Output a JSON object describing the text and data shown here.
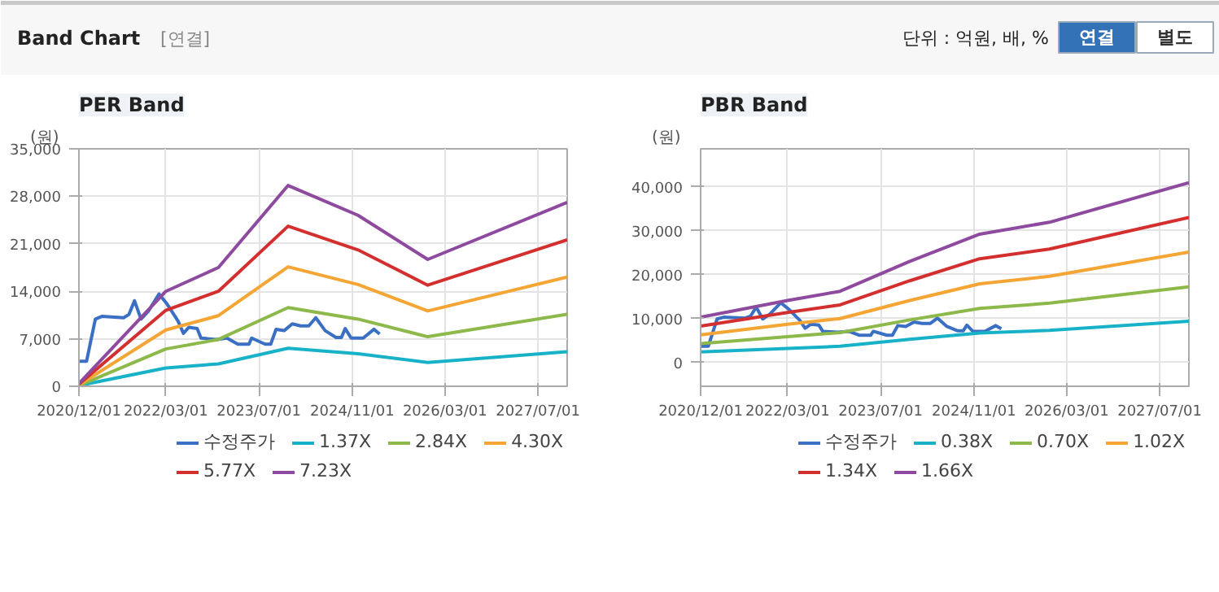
{
  "chart_data": [
    {
      "type": "other",
      "title": "Band Chart",
      "subtitle": "[연결]",
      "annotations": [
        "단위 : 억원, 배, %",
        "연결",
        "별도"
      ]
    },
    {
      "type": "line",
      "title": "PER Band",
      "ylabel": "(원)",
      "grid": true,
      "legend": "bottom",
      "line_style": "solid",
      "xlim": [
        "2020-12-01",
        "2027-12-01"
      ],
      "ylim": [
        0,
        35000
      ],
      "yticks": [
        0,
        {
          "value": 7000,
          "label": "7,000"
        },
        {
          "value": 14000,
          "label": "14,000"
        },
        {
          "value": 21000,
          "label": "21,000"
        },
        {
          "value": 28000,
          "label": "28,000"
        },
        {
          "value": 35000,
          "label": "35,000"
        }
      ],
      "xticks": [
        {
          "value": "2020-12-01",
          "label": "2020/12/01"
        },
        {
          "value": "2022-03-01",
          "label": "2022/03/01"
        },
        {
          "value": "2023-07-01",
          "label": "2023/07/01"
        },
        {
          "value": "2024-11-01",
          "label": "2024/11/01"
        },
        {
          "value": "2026-03-01",
          "label": "2026/03/01"
        },
        {
          "value": "2027-07-01",
          "label": "2027/07/01"
        }
      ],
      "series": [
        {
          "name": "수정주가",
          "color": "#3a6fc4",
          "x": [
            "2020-12-01",
            "2021-01-10",
            "2021-02-25",
            "2021-03-31",
            "2021-07-23",
            "2021-08-20",
            "2021-09-18",
            "2021-10-22",
            "2021-11-28",
            "2022-01-24",
            "2022-03-08",
            "2022-05-04",
            "2022-06-01",
            "2022-06-30",
            "2022-08-12",
            "2022-09-01",
            "2022-11-19",
            "2023-01-15",
            "2023-03-13",
            "2023-05-10",
            "2023-05-24",
            "2023-08-03",
            "2023-09-01",
            "2023-09-29",
            "2023-11-10",
            "2023-12-23",
            "2024-02-04",
            "2024-03-18",
            "2024-04-24",
            "2024-06-12",
            "2024-08-08",
            "2024-09-05",
            "2024-09-25",
            "2024-10-26",
            "2024-12-28",
            "2025-02-23",
            "2025-03-24"
          ],
          "values": [
            3700,
            3700,
            9900,
            10300,
            10100,
            10600,
            12600,
            9900,
            11000,
            13600,
            12100,
            9600,
            7800,
            8700,
            8500,
            7100,
            6900,
            7100,
            6200,
            6200,
            7100,
            6200,
            6200,
            8400,
            8200,
            9200,
            8900,
            8900,
            10100,
            8200,
            7200,
            7200,
            8500,
            7100,
            7100,
            8400,
            7700
          ]
        },
        {
          "name": "1.37X",
          "color": "#17b2c8",
          "x": [
            "2020-12-01",
            "2022-03-01",
            "2022-12-01",
            "2023-12-01",
            "2024-12-01",
            "2025-12-01",
            "2027-12-01"
          ],
          "values": [
            100,
            2700,
            3300,
            5600,
            4800,
            3500,
            5100
          ]
        },
        {
          "name": "2.84X",
          "color": "#8db84a",
          "x": [
            "2020-12-01",
            "2022-03-01",
            "2022-12-01",
            "2023-12-01",
            "2024-12-01",
            "2025-12-01",
            "2027-12-01"
          ],
          "values": [
            100,
            5500,
            6900,
            11600,
            9900,
            7300,
            10600
          ]
        },
        {
          "name": "4.30X",
          "color": "#f4a533",
          "x": [
            "2020-12-01",
            "2022-03-01",
            "2022-12-01",
            "2023-12-01",
            "2024-12-01",
            "2025-12-01",
            "2027-12-01"
          ],
          "values": [
            200,
            8300,
            10400,
            17600,
            15000,
            11100,
            16100
          ]
        },
        {
          "name": "5.77X",
          "color": "#d32f2f",
          "x": [
            "2020-12-01",
            "2022-03-01",
            "2022-12-01",
            "2023-12-01",
            "2024-12-01",
            "2025-12-01",
            "2027-12-01"
          ],
          "values": [
            300,
            11200,
            14000,
            23600,
            20100,
            14900,
            21600
          ]
        },
        {
          "name": "7.23X",
          "color": "#8e4a9e",
          "x": [
            "2020-12-01",
            "2022-03-01",
            "2022-12-01",
            "2023-12-01",
            "2024-12-01",
            "2025-12-01",
            "2027-12-01"
          ],
          "values": [
            400,
            14000,
            17500,
            29600,
            25200,
            18700,
            27100
          ]
        }
      ]
    },
    {
      "type": "line",
      "title": "PBR Band",
      "ylabel": "(원)",
      "grid": true,
      "legend": "bottom",
      "line_style": "solid",
      "xlim": [
        "2020-12-01",
        "2027-12-01"
      ],
      "ylim": [
        -5400,
        48600
      ],
      "yticks": [
        0,
        {
          "value": 10000,
          "label": "10,000"
        },
        {
          "value": 20000,
          "label": "20,000"
        },
        {
          "value": 30000,
          "label": "30,000"
        },
        {
          "value": 40000,
          "label": "40,000"
        }
      ],
      "xticks": [
        {
          "value": "2020-12-01",
          "label": "2020/12/01"
        },
        {
          "value": "2022-03-01",
          "label": "2022/03/01"
        },
        {
          "value": "2023-07-01",
          "label": "2023/07/01"
        },
        {
          "value": "2024-11-01",
          "label": "2024/11/01"
        },
        {
          "value": "2026-03-01",
          "label": "2026/03/01"
        },
        {
          "value": "2027-07-01",
          "label": "2027/07/01"
        }
      ],
      "series": [
        {
          "name": "수정주가",
          "color": "#3a6fc4",
          "x": [
            "2020-12-01",
            "2021-01-10",
            "2021-02-25",
            "2021-03-31",
            "2021-07-23",
            "2021-08-20",
            "2021-09-18",
            "2021-10-22",
            "2021-11-28",
            "2022-01-24",
            "2022-03-08",
            "2022-05-04",
            "2022-06-01",
            "2022-06-30",
            "2022-08-12",
            "2022-09-01",
            "2022-11-19",
            "2023-01-15",
            "2023-03-13",
            "2023-05-10",
            "2023-05-24",
            "2023-08-03",
            "2023-09-01",
            "2023-09-29",
            "2023-11-10",
            "2023-12-23",
            "2024-02-04",
            "2024-03-18",
            "2024-04-24",
            "2024-06-12",
            "2024-08-08",
            "2024-09-05",
            "2024-09-25",
            "2024-10-26",
            "2024-12-28",
            "2025-02-23",
            "2025-03-24"
          ],
          "values": [
            3700,
            3700,
            9900,
            10300,
            10100,
            10600,
            12600,
            9900,
            11000,
            13600,
            12100,
            9600,
            7800,
            8700,
            8500,
            7100,
            6900,
            7100,
            6200,
            6200,
            7100,
            6200,
            6200,
            8400,
            8200,
            9200,
            8900,
            8900,
            10100,
            8200,
            7200,
            7200,
            8500,
            7100,
            7100,
            8400,
            7700
          ]
        },
        {
          "name": "0.38X",
          "color": "#17b2c8",
          "x": [
            "2020-12-01",
            "2022-03-01",
            "2022-12-01",
            "2023-12-01",
            "2024-12-01",
            "2025-12-01",
            "2027-12-01"
          ],
          "values": [
            2400,
            3200,
            3700,
            5300,
            6700,
            7300,
            9400
          ]
        },
        {
          "name": "0.70X",
          "color": "#8db84a",
          "x": [
            "2020-12-01",
            "2022-03-01",
            "2022-12-01",
            "2023-12-01",
            "2024-12-01",
            "2025-12-01",
            "2027-12-01"
          ],
          "values": [
            4300,
            5900,
            6800,
            9700,
            12300,
            13500,
            17200
          ]
        },
        {
          "name": "1.02X",
          "color": "#f4a533",
          "x": [
            "2020-12-01",
            "2022-03-01",
            "2022-12-01",
            "2023-12-01",
            "2024-12-01",
            "2025-12-01",
            "2027-12-01"
          ],
          "values": [
            6300,
            8700,
            10000,
            14100,
            17900,
            19600,
            25100
          ]
        },
        {
          "name": "1.34X",
          "color": "#d32f2f",
          "x": [
            "2020-12-01",
            "2022-03-01",
            "2022-12-01",
            "2023-12-01",
            "2024-12-01",
            "2025-12-01",
            "2027-12-01"
          ],
          "values": [
            8300,
            11400,
            13100,
            18600,
            23600,
            25800,
            33000
          ]
        },
        {
          "name": "1.66X",
          "color": "#8e4a9e",
          "x": [
            "2020-12-01",
            "2022-03-01",
            "2022-12-01",
            "2023-12-01",
            "2024-12-01",
            "2025-12-01",
            "2027-12-01"
          ],
          "values": [
            10300,
            14100,
            16200,
            23000,
            29200,
            31900,
            40900
          ]
        }
      ]
    }
  ]
}
